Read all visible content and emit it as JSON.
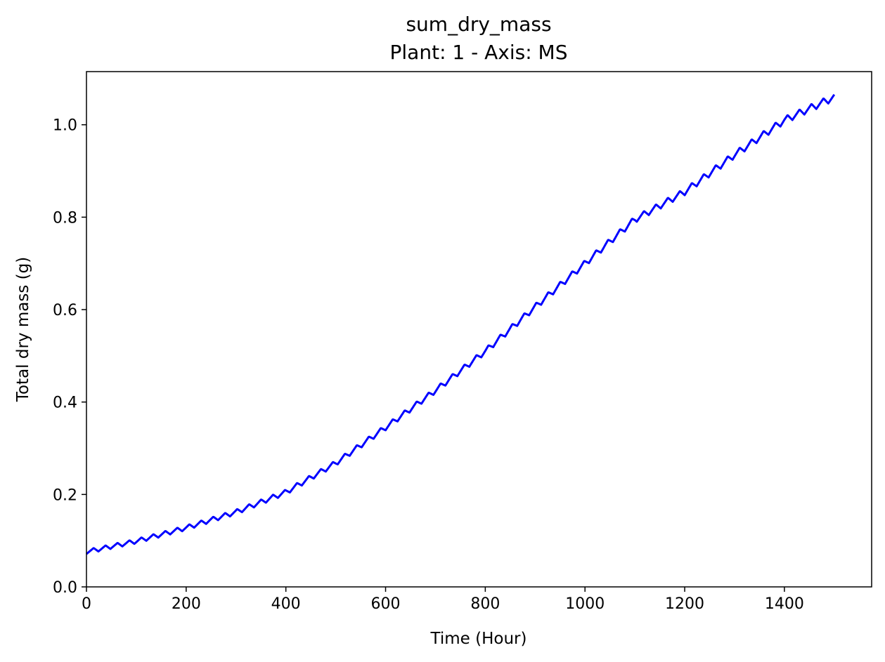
{
  "chart_data": {
    "type": "line",
    "title": "sum_dry_mass",
    "subtitle": "Plant: 1 - Axis: MS",
    "xlabel": "Time (Hour)",
    "ylabel": "Total dry mass (g)",
    "xlim": [
      0,
      1575
    ],
    "ylim": [
      0,
      1.115
    ],
    "xticks": [
      0,
      200,
      400,
      600,
      800,
      1000,
      1200,
      1400
    ],
    "yticks": [
      0.0,
      0.2,
      0.4,
      0.6,
      0.8,
      1.0
    ],
    "xtick_labels": [
      "0",
      "200",
      "400",
      "600",
      "800",
      "1000",
      "1200",
      "1400"
    ],
    "ytick_labels": [
      "0.0",
      "0.2",
      "0.4",
      "0.6",
      "0.8",
      "1.0"
    ],
    "grid": false,
    "legend": "none",
    "series": [
      {
        "color": "#0000ff",
        "x": [
          0,
          100,
          200,
          300,
          400,
          500,
          600,
          700,
          800,
          900,
          1000,
          1100,
          1200,
          1300,
          1400,
          1500
        ],
        "values": [
          0.076,
          0.099,
          0.128,
          0.162,
          0.205,
          0.268,
          0.345,
          0.425,
          0.51,
          0.606,
          0.7,
          0.795,
          0.855,
          0.935,
          1.01,
          1.06
        ],
        "oscillation": {
          "period_hours": 24,
          "amplitude": 0.008
        }
      }
    ]
  }
}
